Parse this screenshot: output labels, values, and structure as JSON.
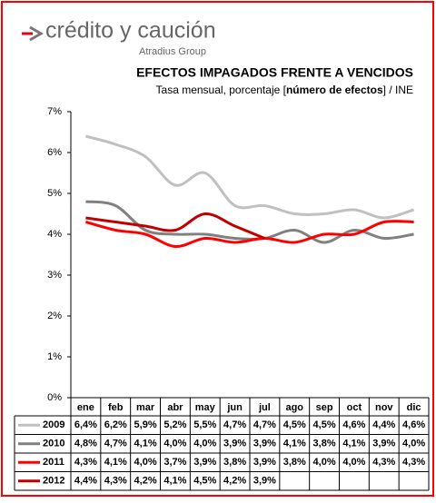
{
  "brand": {
    "name": "crédito y caución",
    "group": "Atradius Group"
  },
  "chart_data": {
    "type": "line",
    "title": "EFECTOS IMPAGADOS FRENTE A VENCIDOS",
    "subtitle": [
      "Tasa mensual, porcentaje [",
      "número de efectos",
      "] / INE"
    ],
    "categories": [
      "ene",
      "feb",
      "mar",
      "abr",
      "may",
      "jun",
      "jul",
      "ago",
      "sep",
      "oct",
      "nov",
      "dic"
    ],
    "ylim": [
      0,
      7
    ],
    "yticks": [
      {
        "value": 0,
        "label": "0%"
      },
      {
        "value": 1,
        "label": "1%"
      },
      {
        "value": 2,
        "label": "2%"
      },
      {
        "value": 3,
        "label": "3%"
      },
      {
        "value": 4,
        "label": "4%"
      },
      {
        "value": 5,
        "label": "5%"
      },
      {
        "value": 6,
        "label": "6%"
      },
      {
        "value": 7,
        "label": "7%"
      }
    ],
    "grid": false,
    "series": [
      {
        "name": "2009",
        "color": "#c0c0c0",
        "values": [
          6.4,
          6.2,
          5.9,
          5.2,
          5.5,
          4.7,
          4.7,
          4.5,
          4.5,
          4.6,
          4.4,
          4.6
        ],
        "value_labels": [
          "6,4%",
          "6,2%",
          "5,9%",
          "5,2%",
          "5,5%",
          "4,7%",
          "4,7%",
          "4,5%",
          "4,5%",
          "4,6%",
          "4,4%",
          "4,6%"
        ]
      },
      {
        "name": "2010",
        "color": "#808080",
        "values": [
          4.8,
          4.7,
          4.1,
          4.0,
          4.0,
          3.9,
          3.9,
          4.1,
          3.8,
          4.1,
          3.9,
          4.0
        ],
        "value_labels": [
          "4,8%",
          "4,7%",
          "4,1%",
          "4,0%",
          "4,0%",
          "3,9%",
          "3,9%",
          "4,1%",
          "3,8%",
          "4,1%",
          "3,9%",
          "4,0%"
        ]
      },
      {
        "name": "2011",
        "color": "#ff0000",
        "values": [
          4.3,
          4.1,
          4.0,
          3.7,
          3.9,
          3.8,
          3.9,
          3.8,
          4.0,
          4.0,
          4.3,
          4.3
        ],
        "value_labels": [
          "4,3%",
          "4,1%",
          "4,0%",
          "3,7%",
          "3,9%",
          "3,8%",
          "3,9%",
          "3,8%",
          "4,0%",
          "4,0%",
          "4,3%",
          "4,3%"
        ]
      },
      {
        "name": "2012",
        "color": "#c00000",
        "values": [
          4.4,
          4.3,
          4.2,
          4.1,
          4.5,
          4.2,
          3.9,
          null,
          null,
          null,
          null,
          null
        ],
        "value_labels": [
          "4,4%",
          "4,3%",
          "4,2%",
          "4,1%",
          "4,5%",
          "4,2%",
          "3,9%",
          null,
          null,
          null,
          null,
          null
        ]
      }
    ]
  }
}
